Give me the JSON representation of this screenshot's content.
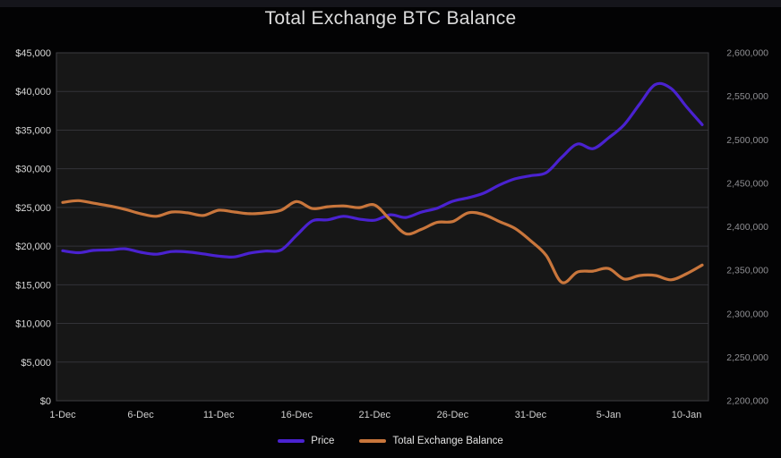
{
  "title": "Total Exchange BTC Balance",
  "legend": {
    "items": [
      {
        "label": "Price",
        "color": "#4a22d0"
      },
      {
        "label": "Total Exchange Balance",
        "color": "#c9763c"
      }
    ]
  },
  "colors": {
    "page_background": "#030304",
    "top_strip": "#15151b",
    "plot_background": "#171717",
    "plot_border": "#3c3c42",
    "gridline": "#333338",
    "title_text": "#dcdcdc",
    "left_axis_text": "#d8d8d8",
    "right_axis_text": "#8f8f93",
    "x_axis_text": "#cfcfcf",
    "legend_text": "#e3e3e3",
    "price_line": "#4a22d0",
    "balance_line": "#c9763c"
  },
  "chart_data": {
    "type": "line",
    "title": "Total Exchange BTC Balance",
    "grid": "horizontal",
    "legend_position": "bottom",
    "x_dates": [
      "1-Dec",
      "2-Dec",
      "3-Dec",
      "4-Dec",
      "5-Dec",
      "6-Dec",
      "7-Dec",
      "8-Dec",
      "9-Dec",
      "10-Dec",
      "11-Dec",
      "12-Dec",
      "13-Dec",
      "14-Dec",
      "15-Dec",
      "16-Dec",
      "17-Dec",
      "18-Dec",
      "19-Dec",
      "20-Dec",
      "21-Dec",
      "22-Dec",
      "23-Dec",
      "24-Dec",
      "25-Dec",
      "26-Dec",
      "27-Dec",
      "28-Dec",
      "29-Dec",
      "30-Dec",
      "31-Dec",
      "1-Jan",
      "2-Jan",
      "3-Jan",
      "4-Jan",
      "5-Jan",
      "6-Jan",
      "7-Jan",
      "8-Jan",
      "9-Jan",
      "10-Jan",
      "11-Jan"
    ],
    "x_axis_tick_labels": [
      "1-Dec",
      "6-Dec",
      "11-Dec",
      "16-Dec",
      "21-Dec",
      "26-Dec",
      "31-Dec",
      "5-Jan",
      "10-Jan"
    ],
    "x_axis_tick_indices": [
      0,
      5,
      10,
      15,
      20,
      25,
      30,
      35,
      40
    ],
    "left_axis": {
      "min": 0,
      "max": 45000,
      "step": 5000,
      "tick_labels": [
        "$45,000",
        "$40,000",
        "$35,000",
        "$30,000",
        "$25,000",
        "$20,000",
        "$15,000",
        "$10,000",
        "$5,000",
        "$0"
      ]
    },
    "right_axis": {
      "min": 2200000,
      "max": 2600000,
      "step": 50000,
      "tick_labels": [
        "2,600,000",
        "2,550,000",
        "2,500,000",
        "2,450,000",
        "2,400,000",
        "2,350,000",
        "2,300,000",
        "2,250,000",
        "2,200,000"
      ]
    },
    "series": [
      {
        "name": "Price",
        "axis": "left",
        "color": "#4a22d0",
        "values": [
          19400,
          19150,
          19450,
          19500,
          19650,
          19200,
          18950,
          19300,
          19250,
          19000,
          18700,
          18600,
          19100,
          19350,
          19500,
          21400,
          23250,
          23400,
          23850,
          23500,
          23350,
          24050,
          23700,
          24400,
          24900,
          25800,
          26250,
          26850,
          27900,
          28700,
          29100,
          29500,
          31500,
          33200,
          32600,
          34000,
          35700,
          38400,
          40900,
          40400,
          38000,
          35700
        ]
      },
      {
        "name": "Total Exchange Balance",
        "axis": "right",
        "color": "#c9763c",
        "values": [
          2428000,
          2430000,
          2427000,
          2424000,
          2420000,
          2415000,
          2412000,
          2417000,
          2416000,
          2413000,
          2419000,
          2417000,
          2415000,
          2416000,
          2419000,
          2429000,
          2421000,
          2423000,
          2424000,
          2422000,
          2425000,
          2408000,
          2392000,
          2397000,
          2405000,
          2406000,
          2416000,
          2414000,
          2406000,
          2398000,
          2384000,
          2367000,
          2336000,
          2348000,
          2349000,
          2352000,
          2340000,
          2344000,
          2344000,
          2339000,
          2346000,
          2356000
        ]
      }
    ]
  }
}
